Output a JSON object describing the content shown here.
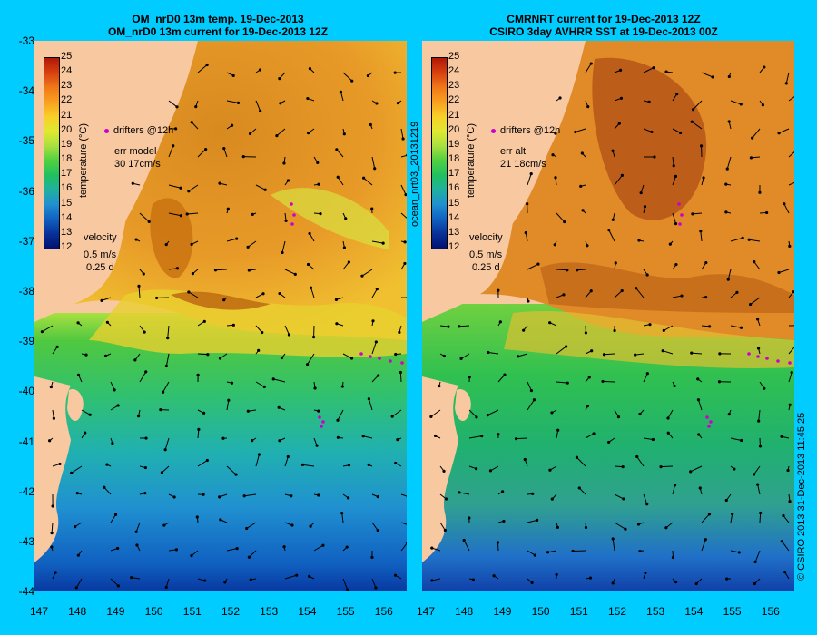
{
  "left_panel": {
    "title_line1": "OM_nrD0 13m temp. 19-Dec-2013",
    "title_line2": "OM_nrD0 13m current for 19-Dec-2013 12Z",
    "legend_drifters": "drifters @12h",
    "err_label": "err model",
    "err_value": "30 17cm/s",
    "velocity_label": "velocity",
    "velocity_speed": "0.5 m/s",
    "velocity_time": "0.25 d"
  },
  "right_panel": {
    "title_line1": "CMRNRT current for 19-Dec-2013 12Z",
    "title_line2": "CSIRO 3day AVHRR SST at 19-Dec-2013 00Z",
    "legend_drifters": "drifters @12h",
    "err_label": "err alt",
    "err_value": "21 18cm/s",
    "velocity_label": "velocity",
    "velocity_speed": "0.5 m/s",
    "velocity_time": "0.25 d"
  },
  "colorbar": {
    "label": "temperature (°C)",
    "ticks": [
      "25",
      "24",
      "23",
      "22",
      "21",
      "20",
      "19",
      "18",
      "17",
      "16",
      "15",
      "14",
      "13",
      "12"
    ]
  },
  "y_ticks": [
    "-33",
    "-34",
    "-35",
    "-36",
    "-37",
    "-38",
    "-39",
    "-40",
    "-41",
    "-42",
    "-43",
    "-44"
  ],
  "x_ticks": [
    "147",
    "148",
    "149",
    "150",
    "151",
    "152",
    "153",
    "154",
    "155",
    "156"
  ],
  "side_label_left": "ocean_nrt03_20131219",
  "side_label_right": "© CSIRO 2013   31-Dec-2013 11:45:25",
  "colors": {
    "background": "#00ccff",
    "land": "#f8c8a0",
    "drifter": "#cc00cc",
    "arrow": "#000000"
  }
}
